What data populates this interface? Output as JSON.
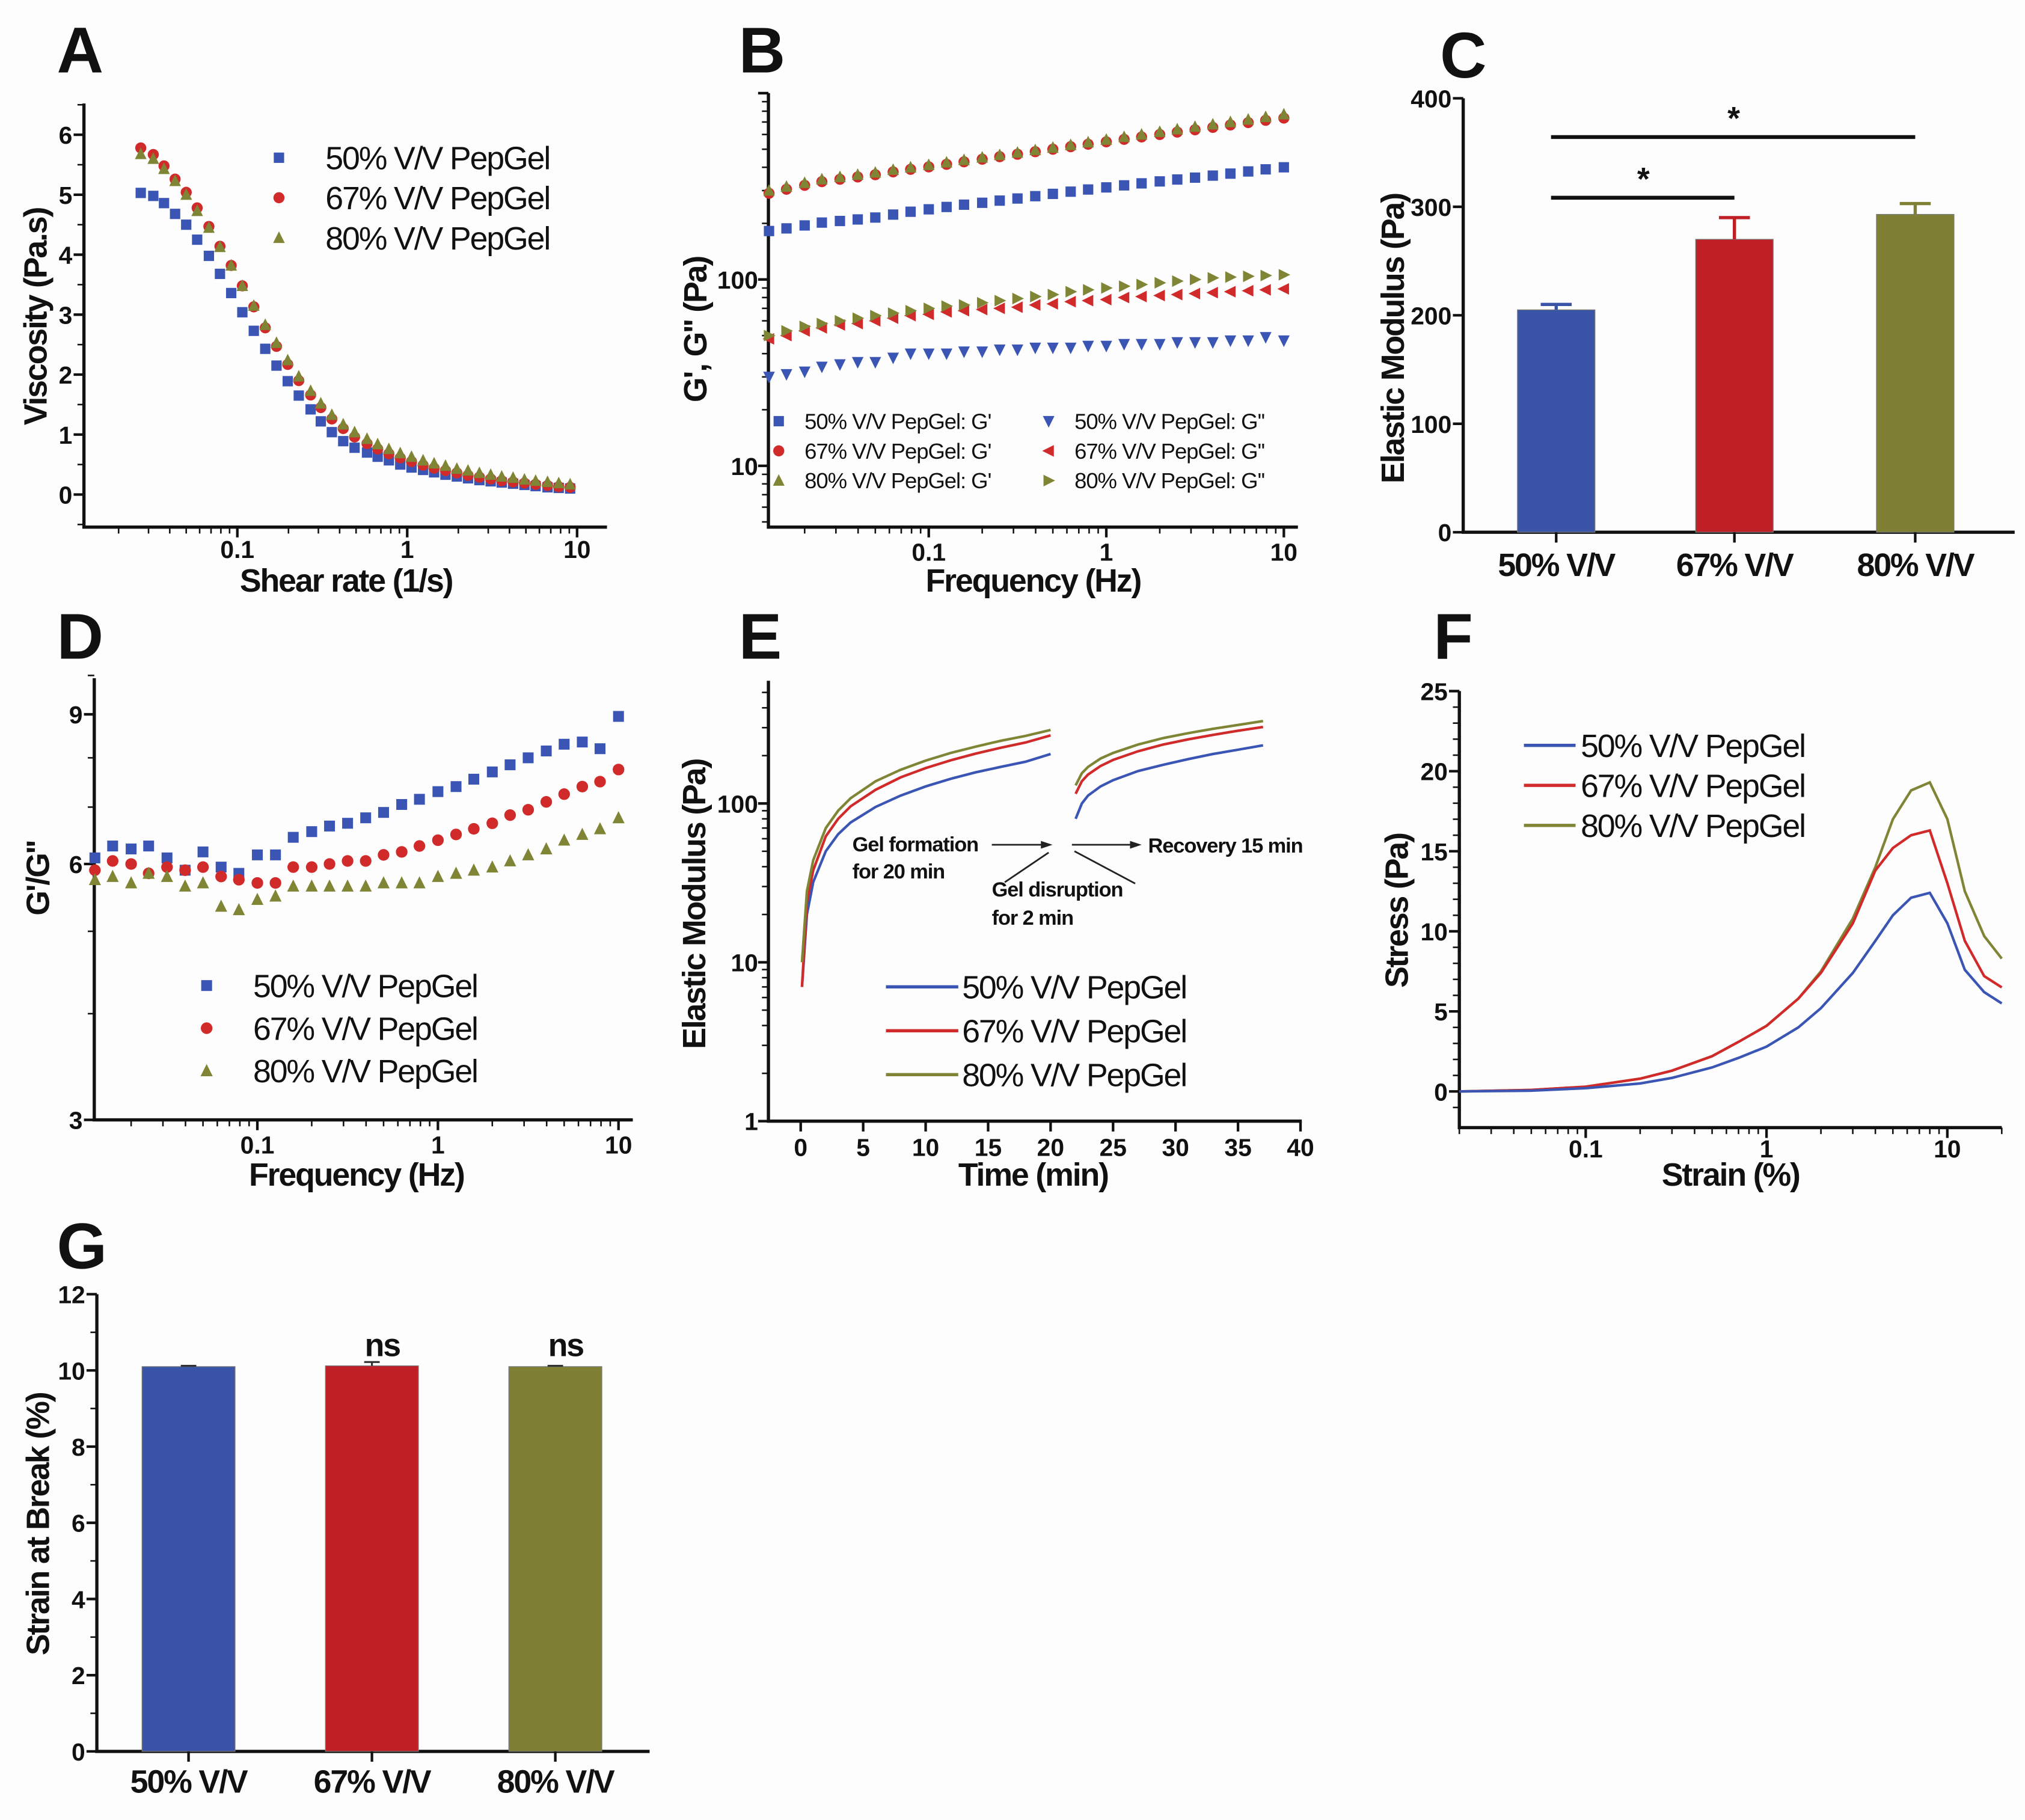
{
  "colors": {
    "s50": "#3a55b4",
    "s67": "#d12a2a",
    "s80": "#7f8535",
    "bar50": "#3a55a8",
    "bar67": "#c01f26",
    "bar80": "#7f8033",
    "axis": "#111111"
  },
  "chart_data": [
    {
      "panel": "A",
      "type": "scatter",
      "xlabel": "Shear rate (1/s)",
      "ylabel": "Viscosity (Pa.s)",
      "xscale": "log",
      "xlim": [
        0.012,
        15
      ],
      "ylim": [
        -0.5,
        6.5
      ],
      "xticks": [
        "0.1",
        "1",
        "10"
      ],
      "yticks": [
        "0",
        "1",
        "2",
        "3",
        "4",
        "5",
        "6"
      ],
      "legend_position": "top-right",
      "x": [
        0.027,
        0.032,
        0.037,
        0.043,
        0.05,
        0.058,
        0.068,
        0.079,
        0.092,
        0.107,
        0.125,
        0.146,
        0.17,
        0.198,
        0.23,
        0.27,
        0.31,
        0.36,
        0.42,
        0.49,
        0.58,
        0.67,
        0.78,
        0.91,
        1.06,
        1.24,
        1.44,
        1.68,
        1.96,
        2.28,
        2.66,
        3.1,
        3.6,
        4.2,
        4.9,
        5.7,
        6.7,
        7.8,
        9.1
      ],
      "series": [
        {
          "name": "50% V/V PepGel",
          "marker": "square",
          "values": [
            5.03,
            4.98,
            4.86,
            4.68,
            4.5,
            4.25,
            3.98,
            3.68,
            3.36,
            3.04,
            2.73,
            2.43,
            2.15,
            1.89,
            1.65,
            1.42,
            1.22,
            1.04,
            0.89,
            0.78,
            0.7,
            0.63,
            0.57,
            0.5,
            0.45,
            0.41,
            0.37,
            0.33,
            0.3,
            0.27,
            0.24,
            0.22,
            0.2,
            0.18,
            0.16,
            0.14,
            0.12,
            0.11,
            0.1
          ]
        },
        {
          "name": "67% V/V PepGel",
          "marker": "circle",
          "values": [
            5.78,
            5.67,
            5.48,
            5.26,
            5.04,
            4.78,
            4.47,
            4.14,
            3.82,
            3.48,
            3.13,
            2.78,
            2.47,
            2.17,
            1.9,
            1.66,
            1.45,
            1.26,
            1.1,
            0.96,
            0.85,
            0.76,
            0.68,
            0.61,
            0.55,
            0.49,
            0.44,
            0.4,
            0.36,
            0.32,
            0.29,
            0.26,
            0.23,
            0.21,
            0.19,
            0.17,
            0.15,
            0.13,
            0.12
          ]
        },
        {
          "name": "80% V/V PepGel",
          "marker": "triangle",
          "values": [
            5.68,
            5.6,
            5.43,
            5.23,
            5.0,
            4.73,
            4.45,
            4.13,
            3.82,
            3.48,
            3.15,
            2.83,
            2.53,
            2.24,
            1.97,
            1.73,
            1.52,
            1.33,
            1.17,
            1.04,
            0.93,
            0.84,
            0.76,
            0.69,
            0.63,
            0.57,
            0.52,
            0.48,
            0.43,
            0.4,
            0.36,
            0.33,
            0.3,
            0.28,
            0.25,
            0.23,
            0.21,
            0.19,
            0.17
          ]
        }
      ]
    },
    {
      "panel": "B",
      "type": "scatter",
      "xlabel": "Frequency (Hz)",
      "ylabel": "G', G'' (Pa)",
      "xscale": "log",
      "yscale": "log",
      "xlim": [
        0.0125,
        12
      ],
      "ylim": [
        5,
        900
      ],
      "xticks": [
        "0.1",
        "1",
        "10"
      ],
      "yticks": [
        "10",
        "100"
      ],
      "legend_position": "bottom",
      "x": [
        0.0126,
        0.0158,
        0.02,
        0.025,
        0.0316,
        0.0398,
        0.05,
        0.063,
        0.079,
        0.1,
        0.126,
        0.158,
        0.2,
        0.251,
        0.316,
        0.398,
        0.5,
        0.63,
        0.79,
        1.0,
        1.26,
        1.58,
        2.0,
        2.51,
        3.16,
        3.98,
        5.0,
        6.3,
        7.9,
        10.0
      ],
      "series": [
        {
          "name": "50% V/V PepGel: G'",
          "marker": "square",
          "values": [
            182,
            188,
            195,
            202,
            206,
            210,
            215,
            223,
            231,
            238,
            245,
            252,
            258,
            265,
            272,
            280,
            288,
            296,
            304,
            312,
            320,
            328,
            336,
            344,
            352,
            361,
            370,
            380,
            390,
            400
          ]
        },
        {
          "name": "67% V/V PepGel: G'",
          "marker": "circle",
          "values": [
            290,
            305,
            320,
            335,
            345,
            355,
            365,
            378,
            390,
            402,
            415,
            428,
            442,
            456,
            470,
            485,
            500,
            516,
            532,
            548,
            565,
            582,
            600,
            618,
            636,
            655,
            675,
            695,
            715,
            735
          ]
        },
        {
          "name": "80% V/V PepGel: G'",
          "marker": "triangle",
          "values": [
            300,
            315,
            330,
            345,
            355,
            365,
            375,
            388,
            400,
            412,
            425,
            438,
            452,
            466,
            480,
            495,
            510,
            527,
            545,
            563,
            582,
            600,
            620,
            640,
            660,
            680,
            700,
            722,
            745,
            770
          ]
        },
        {
          "name": "50% V/V PepGel: G''",
          "marker": "triangle-down",
          "values": [
            30,
            31,
            32,
            34,
            35,
            36,
            36,
            38,
            40,
            40,
            40,
            41,
            41,
            42,
            42,
            43,
            43,
            43,
            44,
            44,
            45,
            45,
            45,
            46,
            46,
            46,
            47,
            47,
            49,
            47
          ]
        },
        {
          "name": "67% V/V PepGel: G''",
          "marker": "triangle-left",
          "values": [
            48,
            50,
            53,
            55,
            57,
            58,
            60,
            62,
            64,
            65,
            67,
            68,
            69,
            70,
            71,
            73,
            74,
            76,
            77,
            78,
            80,
            81,
            82,
            83,
            84,
            85,
            86,
            87,
            88,
            89
          ]
        },
        {
          "name": "80% V/V PepGel: G''",
          "marker": "triangle-right",
          "values": [
            50,
            53,
            56,
            58,
            60,
            62,
            64,
            66,
            68,
            70,
            72,
            73,
            75,
            77,
            79,
            81,
            83,
            86,
            88,
            90,
            92,
            94,
            96,
            98,
            100,
            102,
            103,
            104,
            105,
            106
          ]
        }
      ]
    },
    {
      "panel": "C",
      "type": "bar",
      "xlabel": "",
      "ylabel": "Elastic Modulus (Pa)",
      "ylim": [
        0,
        400
      ],
      "yticks": [
        "0",
        "100",
        "200",
        "300",
        "400"
      ],
      "categories": [
        "50% V/V",
        "67% V/V",
        "80% V/V"
      ],
      "values": [
        205,
        270,
        293
      ],
      "errors": [
        5,
        20,
        10
      ],
      "significance": [
        {
          "from": 0,
          "to": 1,
          "label": "*"
        },
        {
          "from": 0,
          "to": 2,
          "label": "*"
        }
      ]
    },
    {
      "panel": "D",
      "type": "scatter",
      "xlabel": "Frequency (Hz)",
      "ylabel": "G'/G''",
      "xscale": "log",
      "yscale": "log",
      "xlim": [
        0.0125,
        12
      ],
      "ylim": [
        3,
        10
      ],
      "xticks": [
        "0.1",
        "1",
        "10"
      ],
      "yticks": [
        "3",
        "6",
        "9"
      ],
      "legend_position": "bottom-center",
      "x": [
        0.0126,
        0.0158,
        0.02,
        0.025,
        0.0316,
        0.0398,
        0.05,
        0.063,
        0.079,
        0.1,
        0.126,
        0.158,
        0.2,
        0.251,
        0.316,
        0.398,
        0.5,
        0.63,
        0.79,
        1.0,
        1.26,
        1.58,
        2.0,
        2.51,
        3.16,
        3.98,
        5.0,
        6.3,
        7.9,
        10.0
      ],
      "series": [
        {
          "name": "50% V/V PepGel",
          "marker": "square",
          "values": [
            6.1,
            6.3,
            6.25,
            6.3,
            6.1,
            5.9,
            6.2,
            5.95,
            5.85,
            6.15,
            6.15,
            6.45,
            6.55,
            6.65,
            6.7,
            6.8,
            6.9,
            7.05,
            7.15,
            7.3,
            7.4,
            7.55,
            7.7,
            7.85,
            8.0,
            8.15,
            8.3,
            8.35,
            8.2,
            8.95
          ]
        },
        {
          "name": "67% V/V PepGel",
          "marker": "circle",
          "values": [
            5.9,
            6.05,
            6.0,
            5.85,
            5.95,
            5.9,
            5.95,
            5.8,
            5.75,
            5.7,
            5.7,
            5.95,
            5.95,
            6.0,
            6.05,
            6.05,
            6.15,
            6.2,
            6.3,
            6.4,
            6.5,
            6.6,
            6.7,
            6.85,
            6.95,
            7.1,
            7.25,
            7.4,
            7.5,
            7.75
          ]
        },
        {
          "name": "80% V/V PepGel",
          "marker": "triangle",
          "values": [
            5.75,
            5.8,
            5.7,
            5.85,
            5.8,
            5.65,
            5.7,
            5.35,
            5.3,
            5.45,
            5.5,
            5.65,
            5.65,
            5.65,
            5.65,
            5.65,
            5.7,
            5.7,
            5.7,
            5.8,
            5.85,
            5.9,
            5.95,
            6.05,
            6.15,
            6.25,
            6.4,
            6.5,
            6.6,
            6.8
          ]
        }
      ]
    },
    {
      "panel": "E",
      "type": "line",
      "xlabel": "Time (min)",
      "ylabel": "Elastic Modulus (Pa)",
      "yscale": "log",
      "xlim": [
        -2.5,
        40
      ],
      "ylim": [
        1,
        500
      ],
      "xticks": [
        "0",
        "5",
        "10",
        "15",
        "20",
        "25",
        "30",
        "35",
        "40"
      ],
      "yticks": [
        "1",
        "10",
        "100"
      ],
      "legend_position": "bottom-center",
      "annotations": [
        {
          "line1": "Gel formation",
          "line2": "for 20 min"
        },
        {
          "line1": "Gel disruption",
          "line2": "for 2 min"
        },
        {
          "line1": "Recovery 15 min",
          "line2": ""
        }
      ],
      "segments": [
        {
          "x": [
            0.1,
            0.5,
            1,
            2,
            3,
            4,
            6,
            8,
            10,
            12,
            14,
            16,
            18,
            20
          ]
        },
        {
          "x": [
            22,
            22.5,
            23,
            24,
            25,
            27,
            29,
            31,
            33,
            35,
            37
          ]
        }
      ],
      "series": [
        {
          "name": "50% V/V PepGel",
          "seg1": [
            7,
            20,
            32,
            50,
            64,
            76,
            95,
            112,
            128,
            143,
            157,
            170,
            183,
            205
          ],
          "seg2": [
            80,
            100,
            112,
            128,
            140,
            160,
            175,
            190,
            205,
            218,
            232
          ]
        },
        {
          "name": "67% V/V PepGel",
          "seg1": [
            7,
            24,
            38,
            62,
            80,
            96,
            122,
            146,
            167,
            187,
            206,
            224,
            242,
            268
          ],
          "seg2": [
            115,
            138,
            152,
            172,
            188,
            213,
            235,
            253,
            270,
            287,
            303
          ]
        },
        {
          "name": "80% V/V PepGel",
          "seg1": [
            10,
            28,
            44,
            70,
            90,
            108,
            138,
            163,
            186,
            208,
            228,
            248,
            266,
            290
          ],
          "seg2": [
            130,
            155,
            170,
            192,
            208,
            235,
            258,
            277,
            295,
            312,
            330
          ]
        }
      ]
    },
    {
      "panel": "F",
      "type": "line",
      "xlabel": "Strain (%)",
      "ylabel": "Stress (Pa)",
      "xscale": "log",
      "xlim": [
        0.02,
        20
      ],
      "ylim": [
        -2,
        25
      ],
      "xticks": [
        "0.1",
        "1",
        "10"
      ],
      "yticks": [
        "0",
        "5",
        "10",
        "15",
        "20",
        "25"
      ],
      "legend_position": "top-left",
      "x": [
        0.02,
        0.05,
        0.1,
        0.2,
        0.3,
        0.5,
        0.7,
        1,
        1.5,
        2,
        3,
        4,
        5,
        6.3,
        8,
        10,
        12.5,
        16,
        20
      ],
      "series": [
        {
          "name": "50% V/V PepGel",
          "values": [
            0,
            0.05,
            0.2,
            0.5,
            0.85,
            1.5,
            2.1,
            2.8,
            4.0,
            5.2,
            7.4,
            9.4,
            11.0,
            12.1,
            12.4,
            10.5,
            7.6,
            6.2,
            5.5
          ]
        },
        {
          "name": "67% V/V PepGel",
          "values": [
            0,
            0.1,
            0.3,
            0.8,
            1.3,
            2.2,
            3.1,
            4.1,
            5.8,
            7.4,
            10.5,
            13.8,
            15.2,
            16.0,
            16.3,
            13.0,
            9.4,
            7.2,
            6.5
          ]
        },
        {
          "name": "80% V/V PepGel",
          "values": [
            0,
            0.1,
            0.3,
            0.8,
            1.3,
            2.2,
            3.1,
            4.1,
            5.8,
            7.5,
            10.8,
            14.0,
            17.0,
            18.8,
            19.3,
            17.0,
            12.5,
            9.7,
            8.3
          ]
        }
      ]
    },
    {
      "panel": "G",
      "type": "bar",
      "xlabel": "",
      "ylabel": "Strain at Break (%)",
      "ylim": [
        0,
        12
      ],
      "yticks": [
        "0",
        "2",
        "4",
        "6",
        "8",
        "10",
        "12"
      ],
      "categories": [
        "50% V/V",
        "67% V/V",
        "80% V/V"
      ],
      "values": [
        10.1,
        10.12,
        10.1
      ],
      "errors": [
        0.02,
        0.1,
        0.02
      ],
      "bar_annotations": [
        "",
        "ns",
        "ns"
      ]
    }
  ],
  "panels": {
    "A": {
      "letter": "A"
    },
    "B": {
      "letter": "B"
    },
    "C": {
      "letter": "C"
    },
    "D": {
      "letter": "D"
    },
    "E": {
      "letter": "E"
    },
    "F": {
      "letter": "F"
    },
    "G": {
      "letter": "G"
    }
  }
}
